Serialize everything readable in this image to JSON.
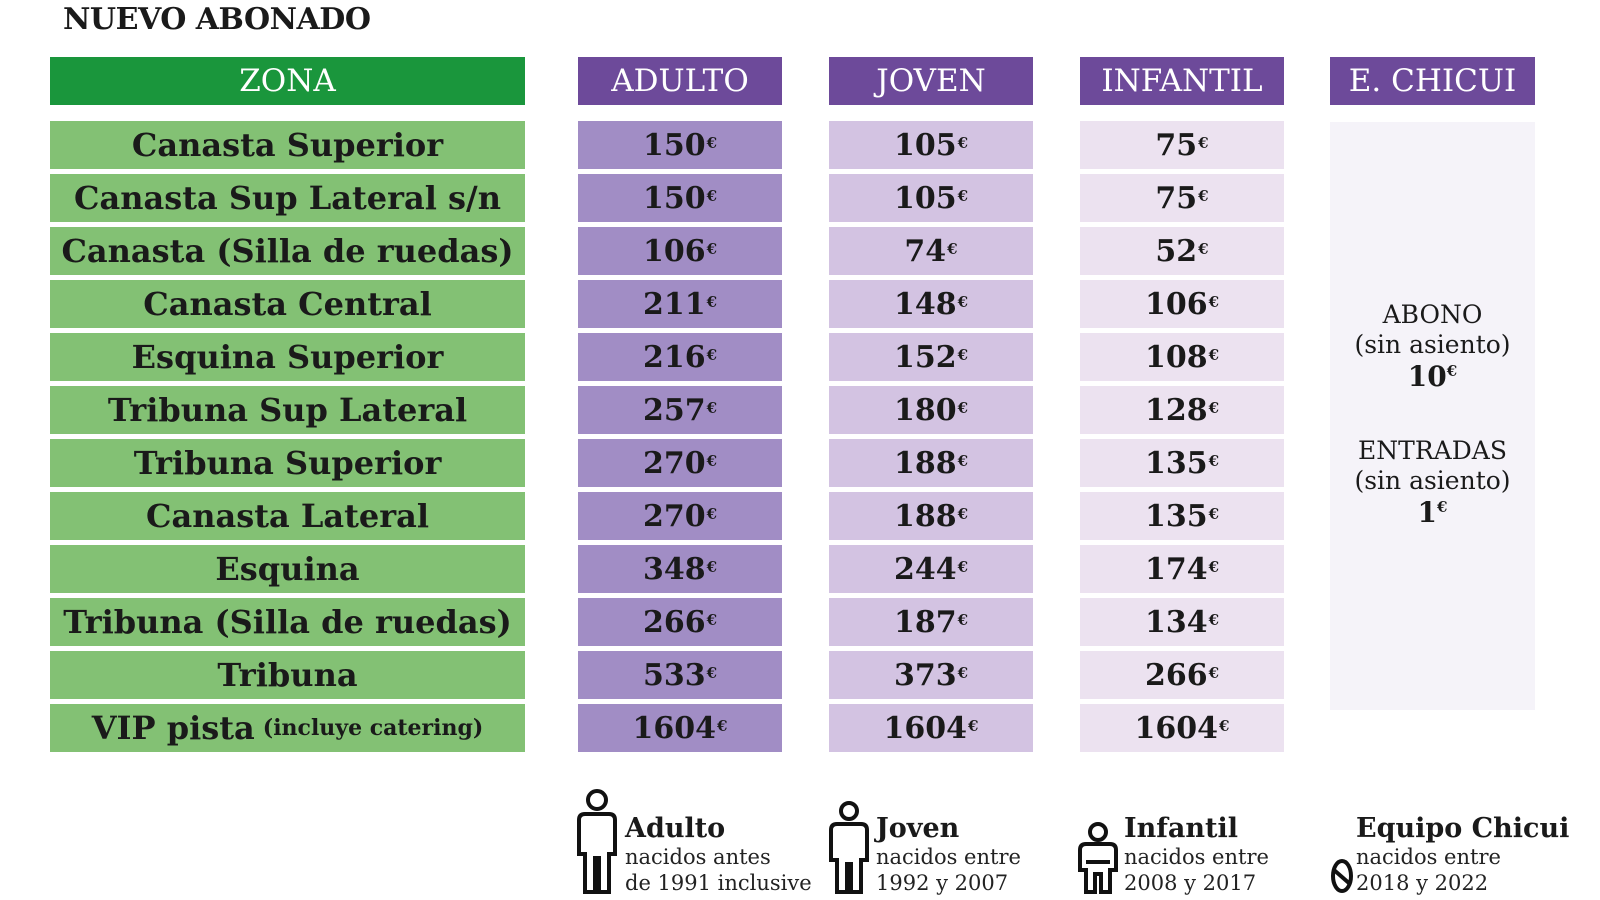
{
  "title": "NUEVO ABONADO",
  "headers": {
    "zona": "ZONA",
    "adulto": "ADULTO",
    "joven": "JOVEN",
    "infantil": "INFANTIL",
    "chicui": "E. CHICUI"
  },
  "currency_symbol": "€",
  "rows": [
    {
      "zona": "Canasta Superior",
      "note": "",
      "adulto": "150",
      "joven": "105",
      "infantil": "75"
    },
    {
      "zona": "Canasta Sup Lateral s/n",
      "note": "",
      "adulto": "150",
      "joven": "105",
      "infantil": "75"
    },
    {
      "zona": "Canasta (Silla de ruedas)",
      "note": "",
      "adulto": "106",
      "joven": "74",
      "infantil": "52"
    },
    {
      "zona": "Canasta Central",
      "note": "",
      "adulto": "211",
      "joven": "148",
      "infantil": "106"
    },
    {
      "zona": "Esquina Superior",
      "note": "",
      "adulto": "216",
      "joven": "152",
      "infantil": "108"
    },
    {
      "zona": "Tribuna Sup Lateral",
      "note": "",
      "adulto": "257",
      "joven": "180",
      "infantil": "128"
    },
    {
      "zona": "Tribuna Superior",
      "note": "",
      "adulto": "270",
      "joven": "188",
      "infantil": "135"
    },
    {
      "zona": "Canasta Lateral",
      "note": "",
      "adulto": "270",
      "joven": "188",
      "infantil": "135"
    },
    {
      "zona": "Esquina",
      "note": "",
      "adulto": "348",
      "joven": "244",
      "infantil": "174"
    },
    {
      "zona": "Tribuna (Silla de ruedas)",
      "note": "",
      "adulto": "266",
      "joven": "187",
      "infantil": "134"
    },
    {
      "zona": "Tribuna",
      "note": "",
      "adulto": "533",
      "joven": "373",
      "infantil": "266"
    },
    {
      "zona": "VIP pista",
      "note": "(incluye catering)",
      "adulto": "1604",
      "joven": "1604",
      "infantil": "1604"
    }
  ],
  "chicui": {
    "abono_label": "ABONO",
    "abono_sub": "(sin asiento)",
    "abono_price": "10",
    "entradas_label": "ENTRADAS",
    "entradas_sub": "(sin asiento)",
    "entradas_price": "1"
  },
  "legend": [
    {
      "icon": "adult-person-icon",
      "name": "Adulto",
      "line1": "nacidos antes",
      "line2": "de 1991 inclusive"
    },
    {
      "icon": "youth-person-icon",
      "name": "Joven",
      "line1": "nacidos entre",
      "line2": "1992 y 2007"
    },
    {
      "icon": "child-person-icon",
      "name": "Infantil",
      "line1": "nacidos entre",
      "line2": "2008 y 2017"
    },
    {
      "icon": "baby-icon",
      "name": "Equipo Chicui",
      "line1": "nacidos entre",
      "line2": "2018 y 2022"
    }
  ],
  "colors": {
    "zona_header": "#1a963c",
    "zona_cell": "#83c174",
    "purple_header": "#6d4a9a",
    "adulto_cell": "#a18dc5",
    "joven_cell": "#d3c3e2",
    "infantil_cell": "#ece2f0",
    "chicui_box": "#f5f3f9"
  }
}
